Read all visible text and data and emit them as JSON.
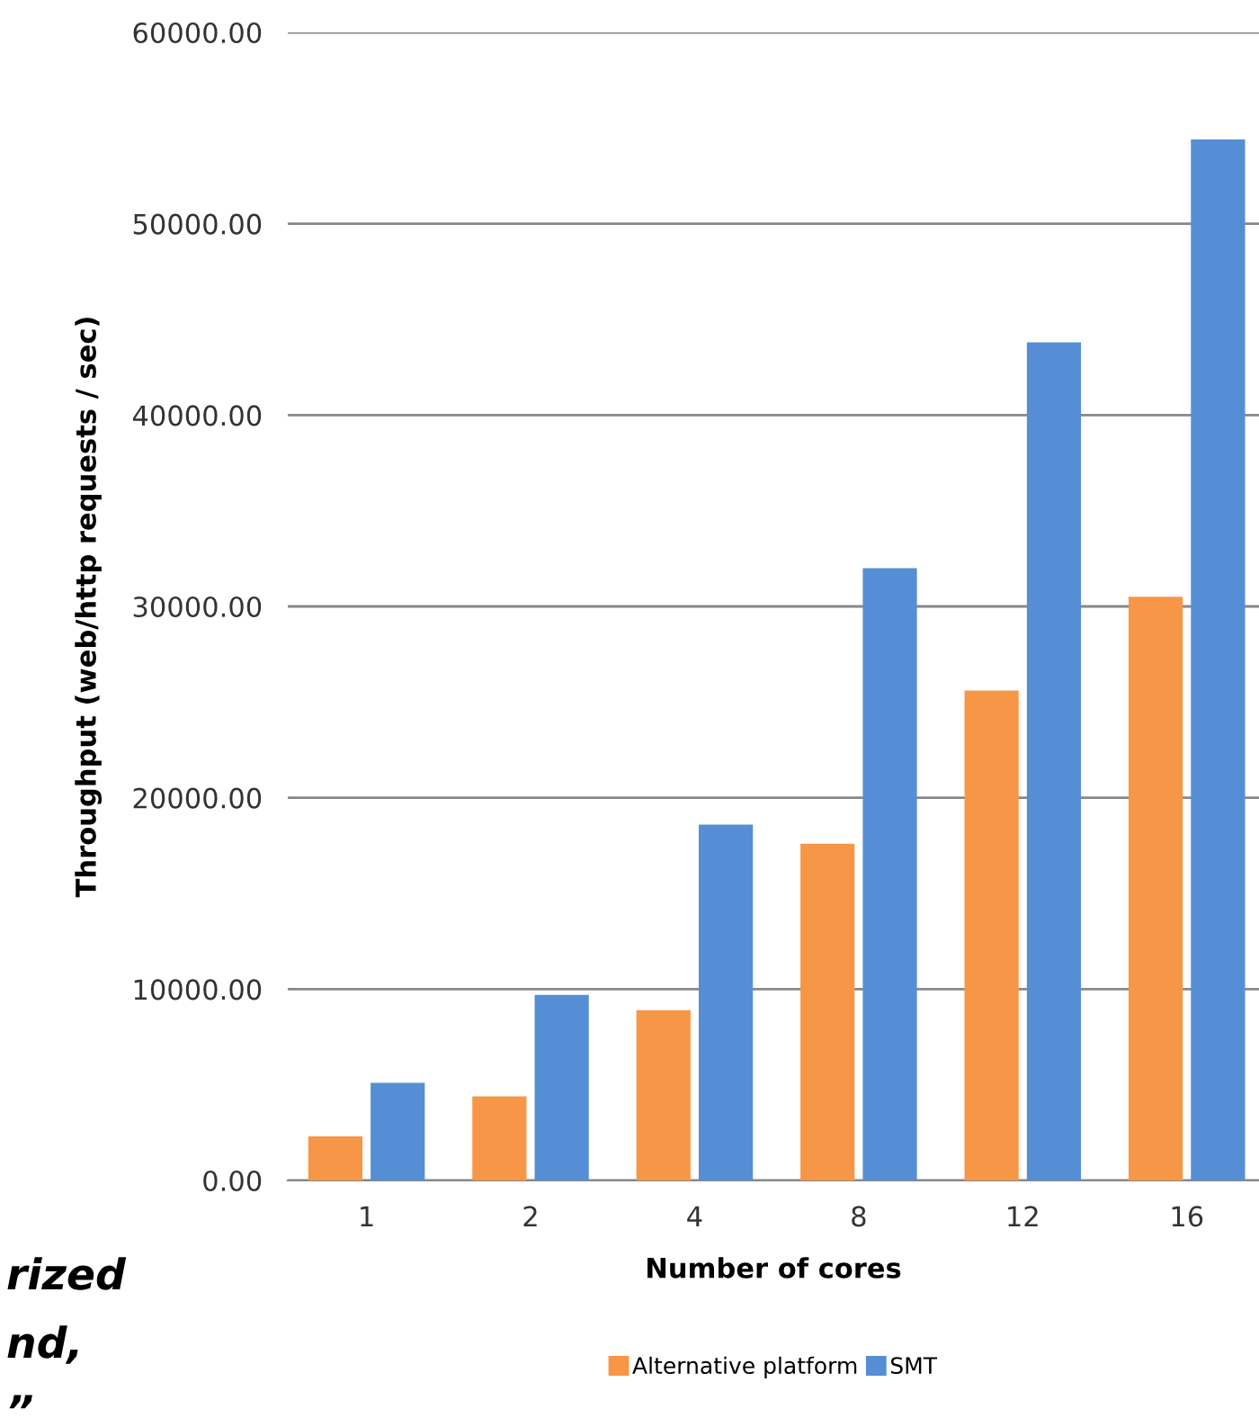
{
  "chart_data": {
    "type": "bar",
    "ylabel": "Throughput (web/http requests / sec)",
    "xlabel": "Number of cores",
    "categories": [
      "1",
      "2",
      "4",
      "8",
      "12",
      "16"
    ],
    "series": [
      {
        "name": "Alternative platform",
        "color": "#f79646",
        "values": [
          2300,
          4400,
          8900,
          17600,
          25600,
          30500
        ]
      },
      {
        "name": "SMT",
        "color": "#558ed5",
        "values": [
          5100,
          9700,
          18600,
          32000,
          43800,
          54400
        ]
      }
    ],
    "ylim": [
      0,
      60000
    ],
    "yticks": [
      {
        "value": 0,
        "label": "0.00"
      },
      {
        "value": 10000,
        "label": "10000.00"
      },
      {
        "value": 20000,
        "label": "20000.00"
      },
      {
        "value": 30000,
        "label": "30000.00"
      },
      {
        "value": 40000,
        "label": "40000.00"
      },
      {
        "value": 50000,
        "label": "50000.00"
      },
      {
        "value": 60000,
        "label": "60000.00"
      }
    ],
    "grid": "y",
    "legend": "bottom",
    "annotations": [
      "rized",
      "nd,",
      "”"
    ]
  }
}
